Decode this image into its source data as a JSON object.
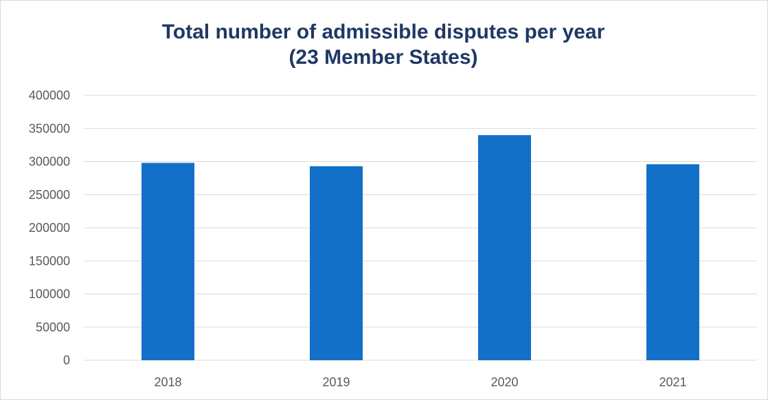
{
  "chart_data": {
    "type": "bar",
    "title": "Total number of admissible disputes per year",
    "subtitle": "(23 Member States)",
    "categories": [
      "2018",
      "2019",
      "2020",
      "2021"
    ],
    "values": [
      298000,
      293000,
      340000,
      296000
    ],
    "xlabel": "",
    "ylabel": "",
    "ylim": [
      0,
      400000
    ],
    "yticks": [
      "0",
      "50000",
      "100000",
      "150000",
      "200000",
      "250000",
      "300000",
      "350000",
      "400000"
    ],
    "grid": true,
    "legend": "none",
    "bar_color": "#1270c9",
    "gridline_color": "#d9d9d9",
    "title_color": "#1f3864"
  }
}
